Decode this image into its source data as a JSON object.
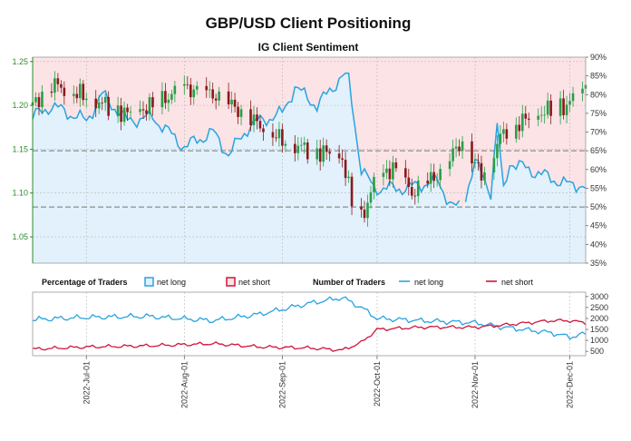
{
  "title": "GBP/USD Client Positioning",
  "subtitle": "IG Client Sentiment",
  "colors": {
    "net_long": "#29a3e0",
    "net_short": "#d0143a",
    "candle_up": "#27a048",
    "candle_down": "#8b1a1a",
    "bg_long": "#e2f1fb",
    "bg_short": "#fbe3e6",
    "left_axis": "#2e8b2e"
  },
  "legend": {
    "percentage_label": "Percentage of Traders",
    "number_label": "Number of Traders",
    "net_long": "net long",
    "net_short": "net short"
  },
  "chart_data": [
    {
      "type": "candlestick",
      "name": "GBP/USD price",
      "x": [
        "2022-07-01",
        "2022-08-01",
        "2022-09-01",
        "2022-10-01",
        "2022-11-01",
        "2022-12-01"
      ],
      "x_tick_labels": [
        "2022-Jul-01",
        "2022-Aug-01",
        "2022-Sep-01",
        "2022-Oct-01",
        "2022-Nov-01",
        "2022-Dec-01"
      ],
      "x_range": [
        "2022-06-14",
        "2022-12-06"
      ],
      "y_range": [
        1.02,
        1.255
      ],
      "y_ticks": [
        1.05,
        1.1,
        1.15,
        1.2,
        1.25
      ],
      "y_tick_labels": [
        "1.05",
        "1.10",
        "1.15",
        "1.20",
        "1.25"
      ],
      "close_approx": [
        [
          "2022-06-14",
          1.2
        ],
        [
          "2022-06-20",
          1.225
        ],
        [
          "2022-07-01",
          1.21
        ],
        [
          "2022-07-14",
          1.19
        ],
        [
          "2022-07-22",
          1.2
        ],
        [
          "2022-08-01",
          1.22
        ],
        [
          "2022-08-12",
          1.21
        ],
        [
          "2022-08-22",
          1.185
        ],
        [
          "2022-09-01",
          1.16
        ],
        [
          "2022-09-09",
          1.15
        ],
        [
          "2022-09-16",
          1.145
        ],
        [
          "2022-09-20",
          1.14
        ],
        [
          "2022-09-23",
          1.09
        ],
        [
          "2022-09-26",
          1.07
        ],
        [
          "2022-09-30",
          1.11
        ],
        [
          "2022-10-06",
          1.13
        ],
        [
          "2022-10-12",
          1.1
        ],
        [
          "2022-10-20",
          1.12
        ],
        [
          "2022-10-28",
          1.16
        ],
        [
          "2022-11-03",
          1.12
        ],
        [
          "2022-11-10",
          1.17
        ],
        [
          "2022-11-20",
          1.19
        ],
        [
          "2022-11-30",
          1.2
        ],
        [
          "2022-12-06",
          1.22
        ]
      ]
    },
    {
      "type": "line",
      "name": "percentage",
      "y_range_percent": [
        35,
        90
      ],
      "y_ticks_percent": [
        35,
        40,
        45,
        50,
        55,
        60,
        65,
        70,
        75,
        80,
        85,
        90
      ],
      "y_tick_labels": [
        "35%",
        "40%",
        "45%",
        "50%",
        "55%",
        "60%",
        "65%",
        "70%",
        "75%",
        "80%",
        "85%",
        "90%"
      ],
      "reference_lines_percent": [
        50,
        65
      ],
      "series": [
        {
          "name": "net long",
          "points": [
            [
              "2022-06-14",
              74
            ],
            [
              "2022-06-20",
              77
            ],
            [
              "2022-07-01",
              73
            ],
            [
              "2022-07-06",
              80
            ],
            [
              "2022-07-14",
              73
            ],
            [
              "2022-07-22",
              74
            ],
            [
              "2022-08-01",
              66
            ],
            [
              "2022-08-10",
              70
            ],
            [
              "2022-08-15",
              64
            ],
            [
              "2022-08-22",
              72
            ],
            [
              "2022-09-01",
              75
            ],
            [
              "2022-09-05",
              82
            ],
            [
              "2022-09-12",
              77
            ],
            [
              "2022-09-20",
              85
            ],
            [
              "2022-09-22",
              84
            ],
            [
              "2022-09-26",
              60
            ],
            [
              "2022-09-30",
              55
            ],
            [
              "2022-10-10",
              55
            ],
            [
              "2022-10-20",
              57
            ],
            [
              "2022-10-25",
              50
            ],
            [
              "2022-10-28",
              50
            ],
            [
              "2022-11-01",
              62
            ],
            [
              "2022-11-06",
              54
            ],
            [
              "2022-11-08",
              72
            ],
            [
              "2022-11-10",
              54
            ],
            [
              "2022-11-12",
              62
            ],
            [
              "2022-11-18",
              60
            ],
            [
              "2022-11-24",
              58
            ],
            [
              "2022-11-30",
              56
            ],
            [
              "2022-12-04",
              56
            ],
            [
              "2022-12-06",
              55
            ]
          ]
        },
        {
          "name": "net short",
          "points": [
            [
              "2022-06-14",
              26
            ],
            [
              "2022-06-20",
              23
            ],
            [
              "2022-07-01",
              27
            ],
            [
              "2022-07-06",
              20
            ],
            [
              "2022-07-14",
              27
            ],
            [
              "2022-07-22",
              26
            ],
            [
              "2022-08-01",
              34
            ],
            [
              "2022-08-10",
              30
            ],
            [
              "2022-08-15",
              36
            ],
            [
              "2022-08-22",
              28
            ],
            [
              "2022-09-01",
              25
            ],
            [
              "2022-09-05",
              18
            ],
            [
              "2022-09-12",
              23
            ],
            [
              "2022-09-20",
              15
            ],
            [
              "2022-09-22",
              16
            ],
            [
              "2022-09-26",
              40
            ],
            [
              "2022-09-30",
              45
            ],
            [
              "2022-10-10",
              45
            ],
            [
              "2022-10-20",
              43
            ],
            [
              "2022-10-25",
              50
            ],
            [
              "2022-10-28",
              50
            ],
            [
              "2022-11-01",
              38
            ],
            [
              "2022-11-06",
              46
            ],
            [
              "2022-11-08",
              28
            ],
            [
              "2022-11-10",
              46
            ],
            [
              "2022-11-12",
              38
            ],
            [
              "2022-11-18",
              40
            ],
            [
              "2022-11-24",
              42
            ],
            [
              "2022-11-30",
              44
            ],
            [
              "2022-12-04",
              44
            ],
            [
              "2022-12-06",
              45
            ]
          ]
        }
      ]
    },
    {
      "type": "line",
      "name": "number of traders",
      "y_range": [
        300,
        3200
      ],
      "y_ticks": [
        500,
        1000,
        1500,
        2000,
        2500,
        3000
      ],
      "y_tick_labels": [
        "500",
        "1000",
        "1500",
        "2000",
        "2500",
        "3000"
      ],
      "series": [
        {
          "name": "net long",
          "points": [
            [
              "2022-06-14",
              1950
            ],
            [
              "2022-07-01",
              2050
            ],
            [
              "2022-07-20",
              2100
            ],
            [
              "2022-08-10",
              1900
            ],
            [
              "2022-08-25",
              2200
            ],
            [
              "2022-09-10",
              2700
            ],
            [
              "2022-09-20",
              2950
            ],
            [
              "2022-09-26",
              2500
            ],
            [
              "2022-10-01",
              2000
            ],
            [
              "2022-10-15",
              1900
            ],
            [
              "2022-11-01",
              1800
            ],
            [
              "2022-11-10",
              1600
            ],
            [
              "2022-11-25",
              1350
            ],
            [
              "2022-12-01",
              1150
            ],
            [
              "2022-12-06",
              1300
            ]
          ]
        },
        {
          "name": "net short",
          "points": [
            [
              "2022-06-14",
              600
            ],
            [
              "2022-07-01",
              700
            ],
            [
              "2022-07-20",
              750
            ],
            [
              "2022-08-10",
              850
            ],
            [
              "2022-08-25",
              700
            ],
            [
              "2022-09-10",
              650
            ],
            [
              "2022-09-20",
              550
            ],
            [
              "2022-09-26",
              900
            ],
            [
              "2022-10-01",
              1500
            ],
            [
              "2022-10-15",
              1600
            ],
            [
              "2022-11-01",
              1600
            ],
            [
              "2022-11-10",
              1700
            ],
            [
              "2022-11-25",
              1900
            ],
            [
              "2022-12-01",
              1900
            ],
            [
              "2022-12-06",
              1800
            ]
          ]
        }
      ]
    }
  ]
}
